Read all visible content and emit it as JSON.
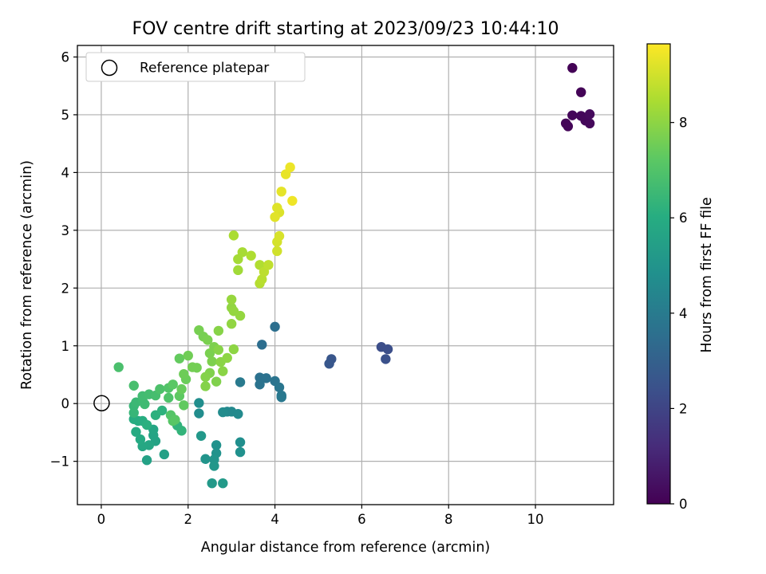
{
  "chart_data": {
    "type": "scatter",
    "title": "FOV centre drift starting at 2023/09/23 10:44:10",
    "xlabel": "Angular distance from reference (arcmin)",
    "ylabel": "Rotation from reference (arcmin)",
    "xlim": [
      -0.55,
      11.8
    ],
    "ylim": [
      -1.75,
      6.2
    ],
    "xticks": [
      0,
      2,
      4,
      6,
      8,
      10
    ],
    "yticks": [
      -1,
      0,
      1,
      2,
      3,
      4,
      5,
      6
    ],
    "grid": true,
    "legend": {
      "location": "upper-left",
      "entries": [
        "Reference platepar"
      ]
    },
    "reference_point": {
      "x": 0,
      "y": 0,
      "label": "Reference platepar"
    },
    "colorbar": {
      "label": "Hours from first FF file",
      "range": [
        0,
        9.65
      ],
      "ticks": [
        0,
        2,
        4,
        6,
        8
      ],
      "colormap": "viridis"
    },
    "points": [
      [
        10.85,
        5.81,
        0.05
      ],
      [
        11.05,
        5.39,
        0.08
      ],
      [
        10.7,
        4.85,
        0.1
      ],
      [
        10.75,
        4.8,
        0.12
      ],
      [
        10.85,
        4.99,
        0.15
      ],
      [
        11.05,
        4.98,
        0.18
      ],
      [
        11.15,
        4.9,
        0.2
      ],
      [
        11.25,
        4.85,
        0.22
      ],
      [
        11.25,
        5.01,
        0.25
      ],
      [
        6.45,
        0.98,
        2.3
      ],
      [
        6.6,
        0.94,
        2.35
      ],
      [
        6.55,
        0.77,
        2.4
      ],
      [
        5.3,
        0.77,
        2.6
      ],
      [
        5.25,
        0.69,
        2.65
      ],
      [
        3.7,
        1.02,
        3.5
      ],
      [
        4.0,
        1.33,
        3.55
      ],
      [
        3.65,
        0.45,
        3.6
      ],
      [
        3.8,
        0.44,
        3.65
      ],
      [
        3.65,
        0.33,
        3.7
      ],
      [
        4.0,
        0.39,
        3.75
      ],
      [
        4.1,
        0.28,
        3.8
      ],
      [
        4.15,
        0.14,
        3.85
      ],
      [
        4.15,
        0.11,
        3.9
      ],
      [
        3.2,
        0.37,
        3.95
      ],
      [
        2.9,
        -0.14,
        4.5
      ],
      [
        3.0,
        -0.14,
        4.55
      ],
      [
        3.15,
        -0.18,
        4.6
      ],
      [
        2.8,
        -0.15,
        4.65
      ],
      [
        2.25,
        -0.17,
        4.7
      ],
      [
        2.25,
        0.01,
        4.75
      ],
      [
        3.2,
        -0.67,
        4.8
      ],
      [
        3.2,
        -0.84,
        4.85
      ],
      [
        2.65,
        -0.72,
        4.9
      ],
      [
        2.65,
        -0.86,
        4.95
      ],
      [
        2.4,
        -0.96,
        5.0
      ],
      [
        2.6,
        -0.97,
        5.05
      ],
      [
        2.6,
        -1.08,
        5.1
      ],
      [
        2.3,
        -0.56,
        5.15
      ],
      [
        2.55,
        -1.38,
        5.2
      ],
      [
        2.8,
        -1.38,
        5.25
      ],
      [
        1.45,
        -0.88,
        5.5
      ],
      [
        1.05,
        -0.98,
        5.55
      ],
      [
        1.25,
        -0.65,
        5.6
      ],
      [
        1.2,
        -0.55,
        5.65
      ],
      [
        1.2,
        -0.45,
        5.7
      ],
      [
        1.1,
        -0.72,
        5.75
      ],
      [
        0.95,
        -0.74,
        5.8
      ],
      [
        0.9,
        -0.62,
        5.85
      ],
      [
        0.8,
        -0.49,
        5.9
      ],
      [
        0.85,
        -0.3,
        5.95
      ],
      [
        0.75,
        -0.27,
        6.0
      ],
      [
        0.95,
        -0.3,
        6.05
      ],
      [
        1.05,
        -0.37,
        6.1
      ],
      [
        1.25,
        -0.2,
        6.15
      ],
      [
        1.4,
        -0.12,
        6.2
      ],
      [
        1.75,
        -0.38,
        6.25
      ],
      [
        1.85,
        -0.47,
        6.3
      ],
      [
        0.75,
        -0.16,
        6.4
      ],
      [
        0.75,
        -0.04,
        6.45
      ],
      [
        0.8,
        0.02,
        6.5
      ],
      [
        0.95,
        0.06,
        6.55
      ],
      [
        1.0,
        -0.01,
        6.6
      ],
      [
        0.95,
        0.13,
        6.65
      ],
      [
        1.1,
        0.16,
        6.7
      ],
      [
        1.25,
        0.14,
        6.75
      ],
      [
        0.75,
        0.31,
        6.8
      ],
      [
        0.4,
        0.63,
        6.85
      ],
      [
        1.35,
        0.25,
        6.9
      ],
      [
        1.55,
        0.1,
        6.95
      ],
      [
        1.55,
        0.27,
        7.0
      ],
      [
        1.6,
        -0.2,
        7.05
      ],
      [
        1.65,
        -0.3,
        7.1
      ],
      [
        1.7,
        -0.28,
        7.15
      ],
      [
        1.65,
        0.33,
        7.2
      ],
      [
        1.8,
        0.13,
        7.25
      ],
      [
        1.9,
        -0.03,
        7.3
      ],
      [
        1.8,
        0.78,
        7.35
      ],
      [
        1.85,
        0.25,
        7.4
      ],
      [
        1.95,
        0.42,
        7.45
      ],
      [
        1.9,
        0.51,
        7.5
      ],
      [
        2.0,
        0.83,
        7.55
      ],
      [
        2.1,
        0.63,
        7.6
      ],
      [
        2.2,
        0.62,
        7.6
      ],
      [
        2.25,
        1.27,
        7.65
      ],
      [
        2.35,
        1.16,
        7.65
      ],
      [
        2.45,
        1.1,
        7.7
      ],
      [
        2.5,
        0.87,
        7.7
      ],
      [
        2.55,
        0.73,
        7.75
      ],
      [
        2.6,
        0.98,
        7.75
      ],
      [
        2.65,
        0.38,
        7.8
      ],
      [
        2.5,
        0.53,
        7.8
      ],
      [
        2.4,
        0.3,
        7.85
      ],
      [
        2.4,
        0.46,
        7.85
      ],
      [
        2.7,
        1.26,
        7.9
      ],
      [
        2.7,
        0.93,
        7.9
      ],
      [
        2.75,
        0.72,
        7.95
      ],
      [
        2.8,
        0.56,
        7.95
      ],
      [
        2.9,
        0.79,
        8.0
      ],
      [
        3.05,
        0.94,
        8.0
      ],
      [
        3.0,
        1.38,
        8.05
      ],
      [
        3.0,
        1.66,
        8.05
      ],
      [
        3.05,
        1.6,
        8.1
      ],
      [
        3.2,
        1.52,
        8.1
      ],
      [
        3.0,
        1.8,
        8.15
      ],
      [
        3.15,
        2.31,
        8.3
      ],
      [
        3.15,
        2.5,
        8.35
      ],
      [
        3.25,
        2.62,
        8.4
      ],
      [
        3.05,
        2.91,
        8.45
      ],
      [
        3.45,
        2.56,
        8.5
      ],
      [
        3.65,
        2.4,
        8.55
      ],
      [
        3.65,
        2.08,
        8.6
      ],
      [
        3.7,
        2.15,
        8.65
      ],
      [
        3.75,
        2.28,
        8.7
      ],
      [
        3.85,
        2.4,
        8.75
      ],
      [
        4.05,
        2.64,
        9.0
      ],
      [
        4.05,
        2.8,
        9.05
      ],
      [
        4.1,
        2.9,
        9.1
      ],
      [
        4.1,
        3.31,
        9.15
      ],
      [
        4.05,
        3.39,
        9.2
      ],
      [
        4.0,
        3.23,
        9.25
      ],
      [
        4.15,
        3.67,
        9.3
      ],
      [
        4.25,
        3.97,
        9.35
      ],
      [
        4.35,
        4.09,
        9.4
      ],
      [
        4.4,
        3.51,
        9.45
      ]
    ]
  }
}
